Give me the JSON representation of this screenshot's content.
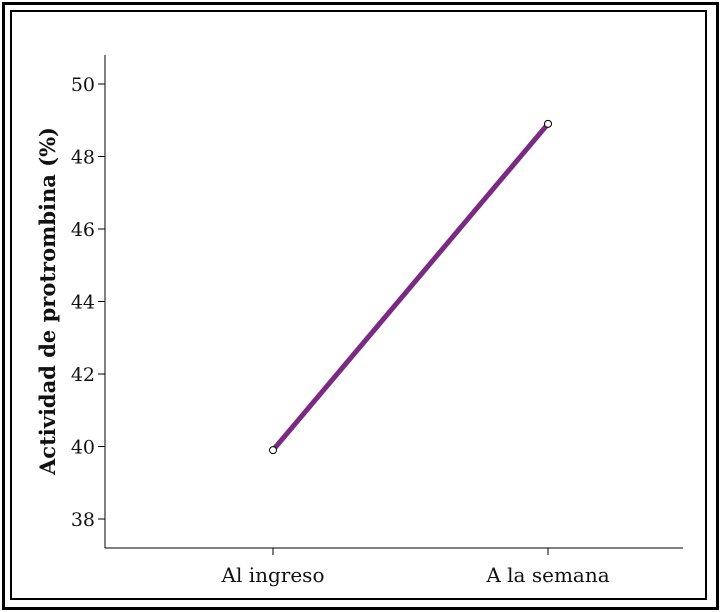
{
  "chart_data": {
    "type": "line",
    "categories": [
      "Al ingreso",
      "A la semana"
    ],
    "series": [
      {
        "values": [
          39.9,
          48.9
        ],
        "color": "#7b2a84"
      }
    ],
    "ylabel": "Actividad de protrombina (%)",
    "xlabel": "",
    "ylim": [
      37.2,
      50.8
    ],
    "yticks": [
      38,
      40,
      42,
      44,
      46,
      48,
      50
    ],
    "grid": false,
    "marker": "open-circle"
  }
}
